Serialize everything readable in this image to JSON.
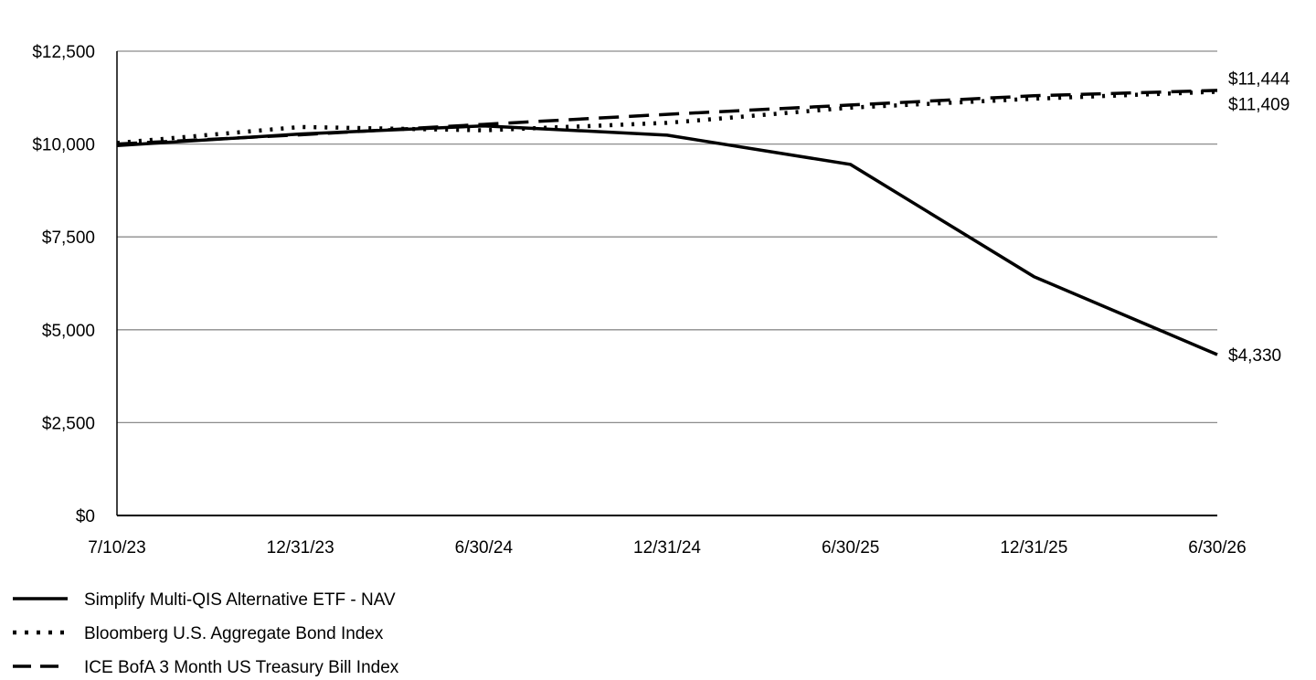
{
  "chart_data": {
    "type": "line",
    "title": "",
    "xlabel": "",
    "ylabel": "",
    "x": [
      "7/10/23",
      "12/31/23",
      "6/30/24",
      "12/31/24",
      "6/30/25",
      "12/31/25",
      "6/30/26"
    ],
    "x_tick_labels": [
      "7/10/23",
      "12/31/23",
      "6/30/24",
      "12/31/24",
      "6/30/25",
      "12/31/25",
      "6/30/26"
    ],
    "ylim": [
      0,
      12500
    ],
    "y_ticks": [
      0,
      2500,
      5000,
      7500,
      10000,
      12500
    ],
    "y_tick_labels": [
      "$0",
      "$2,500",
      "$5,000",
      "$7,500",
      "$10,000",
      "$12,500"
    ],
    "grid": "horizontal",
    "legend_position": "bottom-left",
    "series": [
      {
        "name": "Simplify Multi-QIS Alternative ETF - NAV",
        "style": "solid",
        "color": "#000000",
        "values": [
          9960,
          10270,
          10490,
          10240,
          9450,
          6430,
          4330
        ],
        "end_label": "$4,330"
      },
      {
        "name": "Bloomberg U.S. Aggregate Bond Index",
        "style": "dotted",
        "color": "#000000",
        "values": [
          10030,
          10460,
          10370,
          10570,
          10980,
          11220,
          11409
        ],
        "end_label": "$11,409"
      },
      {
        "name": "ICE BofA 3 Month US Treasury Bill Index",
        "style": "dashed",
        "color": "#000000",
        "values": [
          10000,
          10250,
          10530,
          10800,
          11050,
          11300,
          11444
        ],
        "end_label": "$11,444"
      }
    ]
  }
}
